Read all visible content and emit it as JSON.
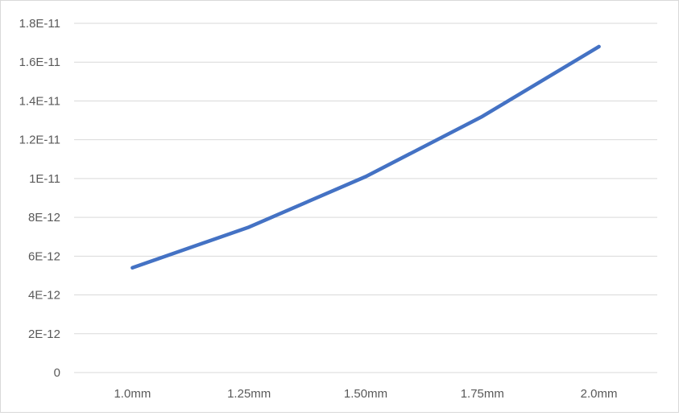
{
  "chart_data": {
    "type": "line",
    "title": "",
    "xlabel": "",
    "ylabel": "",
    "categories": [
      "1.0mm",
      "1.25mm",
      "1.50mm",
      "1.75mm",
      "2.0mm"
    ],
    "series": [
      {
        "values": [
          5.4e-12,
          7.5e-12,
          1.01e-11,
          1.32e-11,
          1.68e-11
        ]
      }
    ],
    "ylim": [
      0,
      1.8e-11
    ],
    "y_ticks": [
      {
        "value": 0,
        "label": "0"
      },
      {
        "value": 2e-12,
        "label": "2E-12"
      },
      {
        "value": 4e-12,
        "label": "4E-12"
      },
      {
        "value": 6e-12,
        "label": "6E-12"
      },
      {
        "value": 8e-12,
        "label": "8E-12"
      },
      {
        "value": 1e-11,
        "label": "1E-11"
      },
      {
        "value": 1.2e-11,
        "label": "1.2E-11"
      },
      {
        "value": 1.4e-11,
        "label": "1.4E-11"
      },
      {
        "value": 1.6e-11,
        "label": "1.6E-11"
      },
      {
        "value": 1.8e-11,
        "label": "1.8E-11"
      }
    ],
    "grid": true,
    "legend": "none",
    "colors": {
      "line": "#4472c4",
      "grid": "#d9d9d9",
      "axis": "#d9d9d9",
      "text": "#595959"
    }
  }
}
